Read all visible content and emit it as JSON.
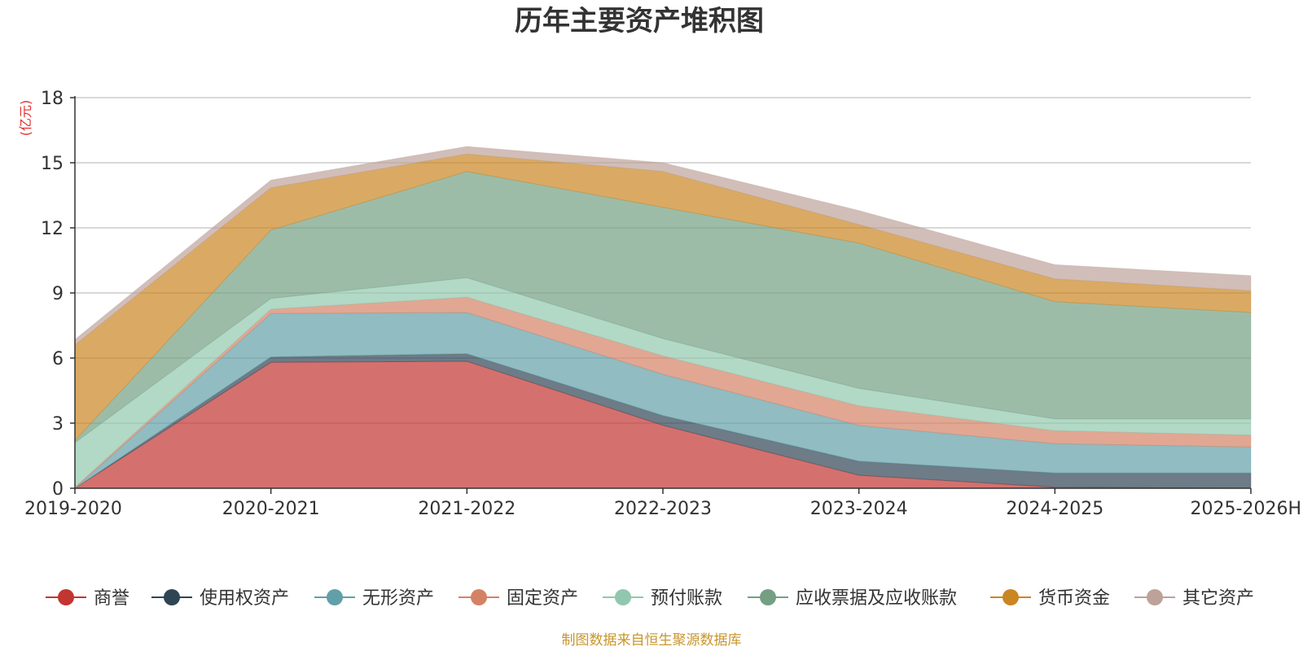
{
  "chart_data": {
    "type": "area",
    "stacked": true,
    "title": "历年主要资产堆积图",
    "unit_label": "(亿元)",
    "source_note": "制图数据来自恒生聚源数据库",
    "categories": [
      "2019-2020",
      "2020-2021",
      "2021-2022",
      "2022-2023",
      "2023-2024",
      "2024-2025",
      "2025-2026H"
    ],
    "ylim": [
      0,
      18
    ],
    "yticks": [
      0,
      3,
      6,
      9,
      12,
      15,
      18
    ],
    "grid": true,
    "legend_position": "bottom",
    "series": [
      {
        "name": "商誉",
        "color": "#c23531",
        "values": [
          0,
          5.8,
          5.85,
          2.9,
          0.6,
          0.05,
          0.0
        ]
      },
      {
        "name": "使用权资产",
        "color": "#2f4554",
        "values": [
          0,
          0.25,
          0.35,
          0.45,
          0.65,
          0.65,
          0.7
        ]
      },
      {
        "name": "无形资产",
        "color": "#61a0a8",
        "values": [
          0,
          2.0,
          1.9,
          1.9,
          1.65,
          1.35,
          1.2
        ]
      },
      {
        "name": "固定资产",
        "color": "#d48265",
        "values": [
          0.05,
          0.2,
          0.7,
          0.85,
          0.9,
          0.6,
          0.55
        ]
      },
      {
        "name": "预付账款",
        "color": "#91c7ae",
        "values": [
          2.05,
          0.5,
          0.9,
          0.8,
          0.8,
          0.55,
          0.75
        ]
      },
      {
        "name": "应收票据及应收账款",
        "color": "#749f83",
        "values": [
          0.1,
          3.15,
          4.9,
          6.05,
          6.7,
          5.4,
          4.9
        ]
      },
      {
        "name": "货币资金",
        "color": "#ca8622",
        "values": [
          4.4,
          1.95,
          0.8,
          1.65,
          0.85,
          1.05,
          1.0
        ]
      },
      {
        "name": "其它资产",
        "color": "#bda29a",
        "values": [
          0.25,
          0.35,
          0.35,
          0.4,
          0.65,
          0.65,
          0.7
        ]
      }
    ]
  }
}
